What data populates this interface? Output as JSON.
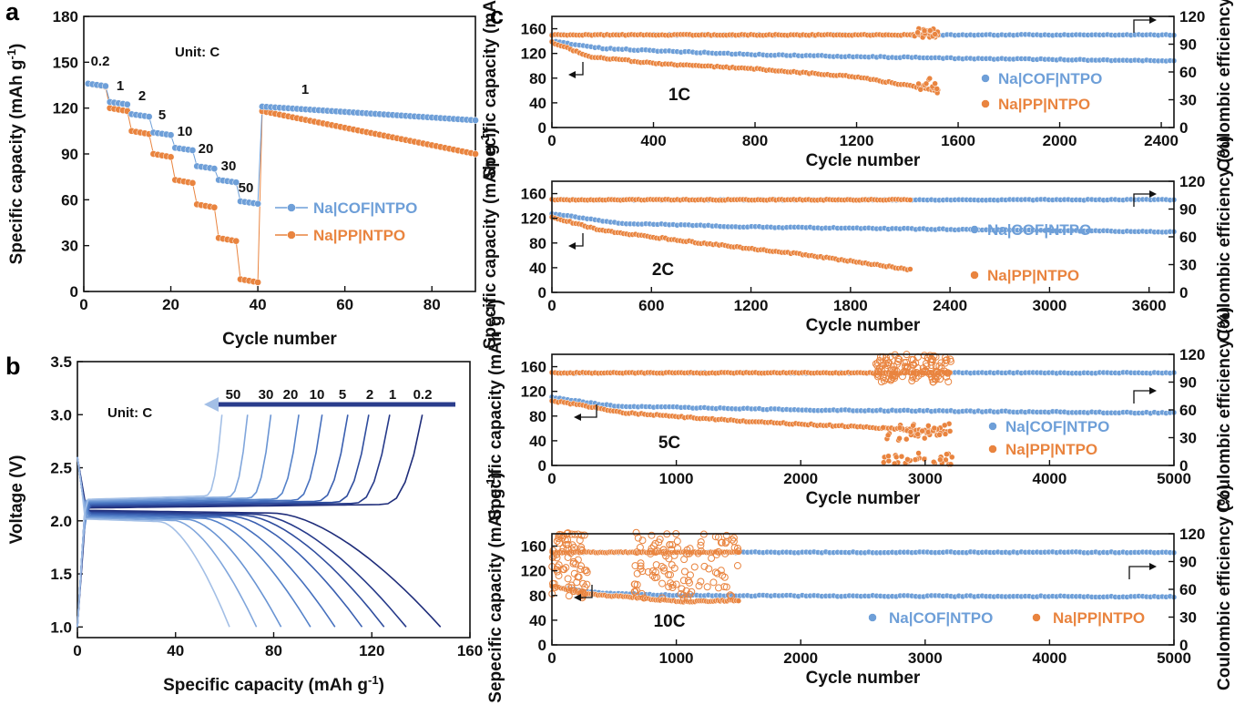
{
  "colors": {
    "cof": "#6E9FD8",
    "pp": "#E9843F",
    "axis": "#111111"
  },
  "panels": {
    "a": "a",
    "b": "b",
    "c": "c"
  },
  "chart_data": [
    {
      "id": "a",
      "type": "scatter",
      "xlabel": "Cycle number",
      "ylabel": "Specific capacity (mAh g-1)",
      "xlim": [
        0,
        90
      ],
      "ylim": [
        0,
        180
      ],
      "xticks": [
        0,
        20,
        40,
        60,
        80
      ],
      "yticks": [
        0,
        30,
        60,
        90,
        120,
        150,
        180
      ],
      "unit_note": "Unit: C",
      "rates": [
        "0.2",
        "1",
        "2",
        "5",
        "10",
        "20",
        "30",
        "50",
        "1"
      ],
      "segments": [
        {
          "rate": "0.2",
          "x": [
            1,
            5
          ],
          "cof": 136,
          "pp": 136
        },
        {
          "rate": "1",
          "x": [
            6,
            10
          ],
          "cof": 124,
          "pp": 120
        },
        {
          "rate": "2",
          "x": [
            11,
            15
          ],
          "cof": 116,
          "pp": 105
        },
        {
          "rate": "5",
          "x": [
            16,
            20
          ],
          "cof": 104,
          "pp": 90
        },
        {
          "rate": "10",
          "x": [
            21,
            25
          ],
          "cof": 94,
          "pp": 73
        },
        {
          "rate": "20",
          "x": [
            26,
            30
          ],
          "cof": 82,
          "pp": 57
        },
        {
          "rate": "30",
          "x": [
            31,
            35
          ],
          "cof": 73,
          "pp": 35
        },
        {
          "rate": "50",
          "x": [
            36,
            40
          ],
          "cof": 59,
          "pp": 8
        },
        {
          "rate": "1",
          "x": [
            41,
            90
          ],
          "cof_start": 121,
          "cof_end": 112,
          "pp_start": 118,
          "pp_end": 90
        }
      ],
      "series": [
        {
          "name": "Na|COF|NTPO",
          "color": "#6E9FD8"
        },
        {
          "name": "Na|PP|NTPO",
          "color": "#E9843F"
        }
      ]
    },
    {
      "id": "b",
      "type": "line",
      "xlabel": "Specific capacity (mAh g-1)",
      "ylabel": "Voltage (V)",
      "xlim": [
        0,
        160
      ],
      "ylim": [
        0.9,
        3.5
      ],
      "xticks": [
        0,
        40,
        80,
        120,
        160
      ],
      "yticks": [
        1.0,
        1.5,
        2.0,
        2.5,
        3.0,
        3.5
      ],
      "unit_note": "Unit: C",
      "rate_labels": [
        "50",
        "30",
        "20",
        "10",
        "5",
        "2",
        "1",
        "0.2"
      ],
      "curves": [
        {
          "rate": "0.2",
          "capacity": 148,
          "color": "#1F2D7A"
        },
        {
          "rate": "1",
          "capacity": 134,
          "color": "#263A8A"
        },
        {
          "rate": "1",
          "capacity": 125,
          "color": "#2F4D9E"
        },
        {
          "rate": "2",
          "capacity": 116,
          "color": "#3A5FB0"
        },
        {
          "rate": "5",
          "capacity": 105,
          "color": "#4670BE"
        },
        {
          "rate": "10",
          "capacity": 95,
          "color": "#5582C9"
        },
        {
          "rate": "20",
          "capacity": 83,
          "color": "#6994D3"
        },
        {
          "rate": "30",
          "capacity": 73,
          "color": "#80A6DC"
        },
        {
          "rate": "50",
          "capacity": 62,
          "color": "#A3BFE6"
        }
      ]
    },
    {
      "id": "c1",
      "type": "scatter",
      "rate_label": "1C",
      "xlabel": "Cycle number",
      "ylabel": "Specific capacity (mAh g-1)",
      "y2label": "Coulombic efficiency (%)",
      "xlim": [
        0,
        2450
      ],
      "ylim": [
        0,
        180
      ],
      "y2lim": [
        0,
        120
      ],
      "xticks": [
        0,
        400,
        800,
        1200,
        1600,
        2000,
        2400
      ],
      "yticks": [
        0,
        40,
        80,
        120,
        160
      ],
      "y2ticks": [
        0,
        30,
        60,
        90,
        120
      ],
      "series": [
        {
          "name": "Na|COF|NTPO",
          "color": "#6E9FD8",
          "capacity": [
            [
              0,
              140
            ],
            [
              200,
              128
            ],
            [
              800,
              118
            ],
            [
              1600,
              112
            ],
            [
              2450,
              108
            ]
          ],
          "ce": 100,
          "x_end": 2450
        },
        {
          "name": "Na|PP|NTPO",
          "color": "#E9843F",
          "capacity": [
            [
              0,
              138
            ],
            [
              150,
              115
            ],
            [
              400,
              104
            ],
            [
              800,
              95
            ],
            [
              1200,
              82
            ],
            [
              1520,
              60
            ]
          ],
          "ce": 100,
          "x_end": 1520
        }
      ]
    },
    {
      "id": "c2",
      "type": "scatter",
      "rate_label": "2C",
      "xlabel": "Cycle number",
      "ylabel": "Specific capacity (mAh g-1)",
      "y2label": "Coulombic efficiency (%)",
      "xlim": [
        0,
        3750
      ],
      "ylim": [
        0,
        180
      ],
      "y2lim": [
        0,
        120
      ],
      "xticks": [
        0,
        600,
        1200,
        1800,
        2400,
        3000,
        3600
      ],
      "yticks": [
        0,
        40,
        80,
        120,
        160
      ],
      "y2ticks": [
        0,
        30,
        60,
        90,
        120
      ],
      "series": [
        {
          "name": "Na|COF|NTPO",
          "color": "#6E9FD8",
          "capacity": [
            [
              0,
              128
            ],
            [
              400,
              112
            ],
            [
              1200,
              106
            ],
            [
              2400,
              102
            ],
            [
              3750,
              98
            ]
          ],
          "ce": 100,
          "x_end": 3750
        },
        {
          "name": "Na|PP|NTPO",
          "color": "#E9843F",
          "capacity": [
            [
              0,
              122
            ],
            [
              300,
              100
            ],
            [
              900,
              80
            ],
            [
              1500,
              62
            ],
            [
              2160,
              37
            ]
          ],
          "ce": 100,
          "x_end": 2160
        }
      ]
    },
    {
      "id": "c3",
      "type": "scatter",
      "rate_label": "5C",
      "xlabel": "Cycle number",
      "ylabel": "Specific capacity (mAh g-1)",
      "y2label": "Coulombic efficiency (%)",
      "xlim": [
        0,
        5000
      ],
      "ylim": [
        0,
        180
      ],
      "y2lim": [
        0,
        120
      ],
      "xticks": [
        0,
        1000,
        2000,
        3000,
        4000,
        5000
      ],
      "yticks": [
        0,
        40,
        80,
        120,
        160
      ],
      "y2ticks": [
        0,
        30,
        60,
        90,
        120
      ],
      "series": [
        {
          "name": "Na|COF|NTPO",
          "color": "#6E9FD8",
          "capacity": [
            [
              0,
              110
            ],
            [
              500,
              96
            ],
            [
              2000,
              90
            ],
            [
              5000,
              85
            ]
          ],
          "ce": 100,
          "x_end": 5000
        },
        {
          "name": "Na|PP|NTPO",
          "color": "#E9843F",
          "capacity": [
            [
              0,
              105
            ],
            [
              600,
              85
            ],
            [
              1500,
              72
            ],
            [
              2500,
              62
            ],
            [
              3200,
              55
            ]
          ],
          "ce": 100,
          "x_end": 3200
        }
      ]
    },
    {
      "id": "c4",
      "type": "scatter",
      "rate_label": "10C",
      "xlabel": "Cycle number",
      "ylabel": "Sepecific capacity (mAh g-1)",
      "y2label": "Coulombic efficiency (%)",
      "xlim": [
        0,
        5000
      ],
      "ylim": [
        0,
        180
      ],
      "y2lim": [
        0,
        120
      ],
      "xticks": [
        0,
        1000,
        2000,
        3000,
        4000,
        5000
      ],
      "yticks": [
        0,
        40,
        80,
        120,
        160
      ],
      "y2ticks": [
        0,
        30,
        60,
        90,
        120
      ],
      "series": [
        {
          "name": "Na|COF|NTPO",
          "color": "#6E9FD8",
          "capacity": [
            [
              0,
              95
            ],
            [
              300,
              85
            ],
            [
              1000,
              80
            ],
            [
              5000,
              78
            ]
          ],
          "ce": 100,
          "x_end": 5000
        },
        {
          "name": "Na|PP|NTPO",
          "color": "#E9843F",
          "capacity": [
            [
              0,
              95
            ],
            [
              300,
              82
            ],
            [
              700,
              76
            ],
            [
              1050,
              70
            ],
            [
              1500,
              72
            ]
          ],
          "ce": 100,
          "x_end": 1500
        }
      ]
    }
  ]
}
